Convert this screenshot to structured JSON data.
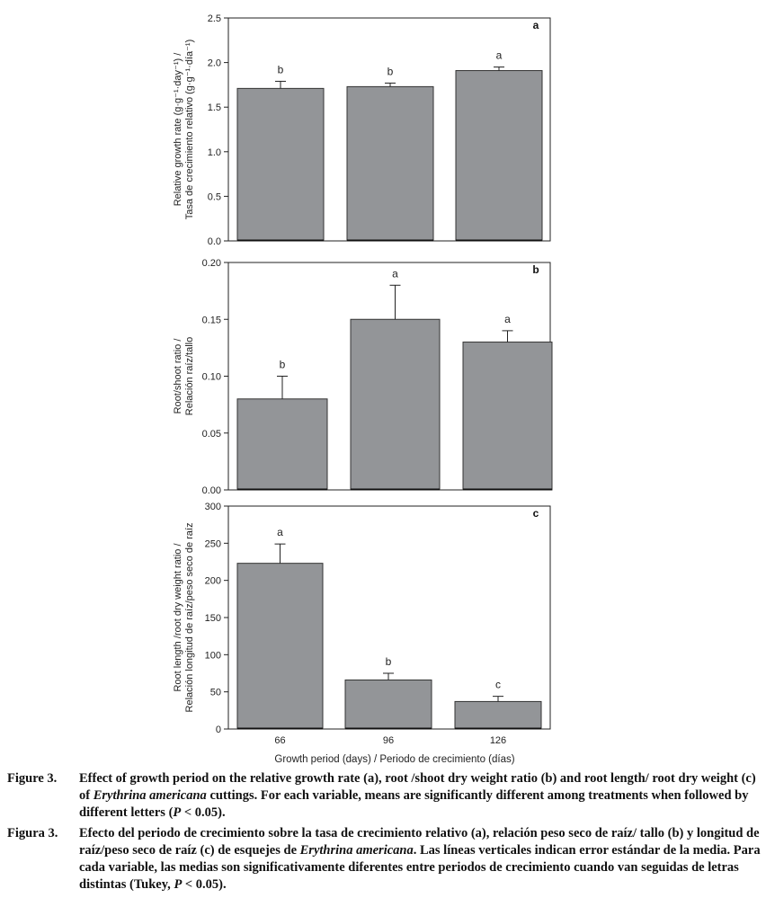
{
  "chart_data": [
    {
      "type": "bar",
      "panel_letter": "a",
      "categories": [
        "66",
        "96",
        "126"
      ],
      "values": [
        1.71,
        1.73,
        1.91
      ],
      "errors": [
        0.08,
        0.04,
        0.04
      ],
      "significance": [
        "b",
        "b",
        "a"
      ],
      "ylabel_lines": [
        "Relative growth rate (g·g⁻¹·day⁻¹) /",
        "Tasa de crecimiento relativo (g·g⁻¹·día⁻¹)"
      ],
      "ylim": [
        0,
        2.5
      ],
      "yticks": [
        "0.0",
        "0.5",
        "1.0",
        "1.5",
        "2.0",
        "2.5"
      ],
      "show_x_ticklabels": false,
      "bar_color": "#939598"
    },
    {
      "type": "bar",
      "panel_letter": "b",
      "categories": [
        "66",
        "96",
        "126"
      ],
      "values": [
        0.08,
        0.15,
        0.13
      ],
      "errors": [
        0.02,
        0.03,
        0.01
      ],
      "significance": [
        "b",
        "a",
        "a"
      ],
      "ylabel_lines": [
        "Root/shoot ratio /",
        "Relación raíz/tallo"
      ],
      "ylim": [
        0,
        0.2
      ],
      "yticks": [
        "0.00",
        "0.05",
        "0.10",
        "0.15",
        "0.20"
      ],
      "show_x_ticklabels": false,
      "bar_color": "#939598"
    },
    {
      "type": "bar",
      "panel_letter": "c",
      "categories": [
        "66",
        "96",
        "126"
      ],
      "values": [
        223,
        66,
        37
      ],
      "errors": [
        26,
        9,
        7
      ],
      "significance": [
        "a",
        "b",
        "c"
      ],
      "ylabel_lines": [
        "Root length /root dry weight ratio /",
        "Relación longitud de raíz/peso seco de raíz"
      ],
      "ylim": [
        0,
        300
      ],
      "yticks": [
        "0",
        "50",
        "100",
        "150",
        "200",
        "250",
        "300"
      ],
      "show_x_ticklabels": true,
      "xlabel": "Growth period (days) / Periodo de crecimiento (días)",
      "bar_color": "#939598"
    }
  ],
  "caption_en": {
    "label": "Figure 3.",
    "text_before": "Effect of growth period on the relative growth rate (a), root /shoot dry weight ratio (b) and root length/ root dry weight (c) of ",
    "species": "Erythrina americana",
    "text_after": " cuttings. For each variable, means are significantly different among treatments when followed by different letters (",
    "p_symbol": "P",
    "p_value": " < 0.05)."
  },
  "caption_es": {
    "label": "Figura 3.",
    "text_before": "Efecto del periodo de crecimiento sobre la tasa de crecimiento relativo (a), relación peso seco de raíz/ tallo (b) y longitud de raíz/peso seco de raíz (c) de esquejes de ",
    "species": "Erythrina americana",
    "text_after": ". Las líneas verticales indican error estándar de la media. Para cada variable, las medias son significativamente diferentes entre periodos de crecimiento cuando van seguidas de letras distintas (Tukey, ",
    "p_symbol": "P",
    "p_value": " < 0.05)."
  }
}
